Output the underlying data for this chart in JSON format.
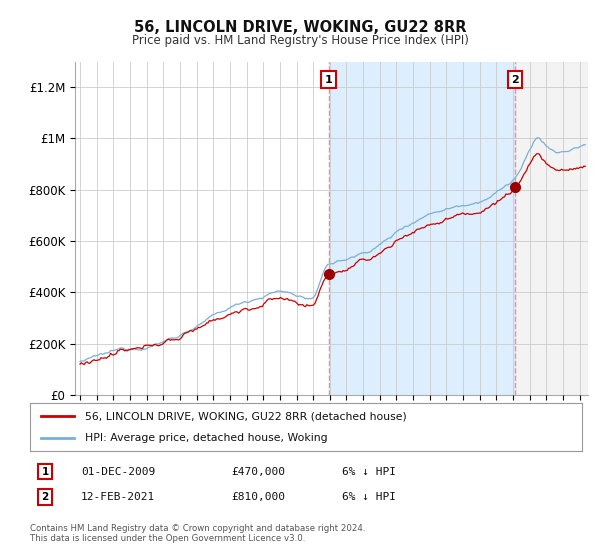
{
  "title": "56, LINCOLN DRIVE, WOKING, GU22 8RR",
  "subtitle": "Price paid vs. HM Land Registry's House Price Index (HPI)",
  "ylabel_ticks": [
    "£0",
    "£200K",
    "£400K",
    "£600K",
    "£800K",
    "£1M",
    "£1.2M"
  ],
  "ylim": [
    0,
    1300000
  ],
  "xlim_start": 1994.7,
  "xlim_end": 2025.5,
  "sale1_year": 2009.92,
  "sale1_price": 470000,
  "sale2_year": 2021.12,
  "sale2_price": 810000,
  "red_line_color": "#cc0000",
  "blue_line_color": "#7ab0d4",
  "shade_between_color": "#ddeeff",
  "shade_after_color": "#e8e8e8",
  "dashed_line_color": "#ff8888",
  "marker_color": "#990000",
  "marker_box_color": "#cc0000",
  "legend_label_red": "56, LINCOLN DRIVE, WOKING, GU22 8RR (detached house)",
  "legend_label_blue": "HPI: Average price, detached house, Woking",
  "table_row1": [
    "1",
    "01-DEC-2009",
    "£470,000",
    "6% ↓ HPI"
  ],
  "table_row2": [
    "2",
    "12-FEB-2021",
    "£810,000",
    "6% ↓ HPI"
  ],
  "footnote": "Contains HM Land Registry data © Crown copyright and database right 2024.\nThis data is licensed under the Open Government Licence v3.0.",
  "background_color": "#ffffff",
  "grid_color": "#cccccc"
}
